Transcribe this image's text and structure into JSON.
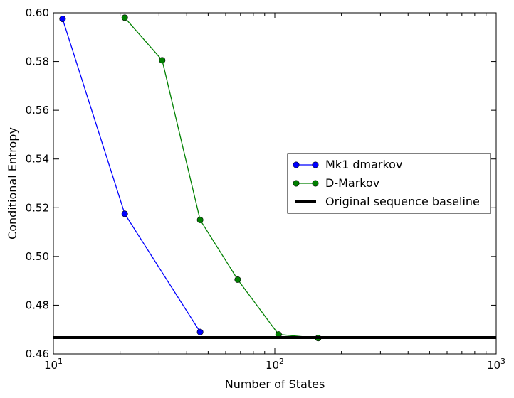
{
  "chart_data": {
    "type": "line",
    "title": "",
    "xlabel": "Number of States",
    "ylabel": "Conditional Entropy",
    "x_scale": "log",
    "xlim": [
      10,
      1000
    ],
    "ylim": [
      0.46,
      0.6
    ],
    "x_ticks": [
      {
        "value": 10,
        "base": "10",
        "exp": "1"
      },
      {
        "value": 100,
        "base": "10",
        "exp": "2"
      },
      {
        "value": 1000,
        "base": "10",
        "exp": "3"
      }
    ],
    "y_ticks": [
      {
        "value": 0.46,
        "label": "0.46"
      },
      {
        "value": 0.48,
        "label": "0.48"
      },
      {
        "value": 0.5,
        "label": "0.50"
      },
      {
        "value": 0.52,
        "label": "0.52"
      },
      {
        "value": 0.54,
        "label": "0.54"
      },
      {
        "value": 0.56,
        "label": "0.56"
      },
      {
        "value": 0.58,
        "label": "0.58"
      },
      {
        "value": 0.6,
        "label": "0.60"
      }
    ],
    "grid": false,
    "legend_position": "right",
    "series": [
      {
        "name": "Mk1 dmarkov",
        "color": "#0000ff",
        "marker": "circle",
        "x": [
          11,
          21,
          46
        ],
        "y": [
          0.5975,
          0.5175,
          0.469
        ]
      },
      {
        "name": "D-Markov",
        "color": "#008000",
        "marker": "circle",
        "x": [
          21,
          31,
          46,
          68,
          104,
          157
        ],
        "y": [
          0.598,
          0.5805,
          0.515,
          0.4905,
          0.468,
          0.4665
        ]
      },
      {
        "name": "Original sequence baseline",
        "color": "#000000",
        "marker": "none",
        "type": "hline",
        "y": 0.4667
      }
    ]
  }
}
